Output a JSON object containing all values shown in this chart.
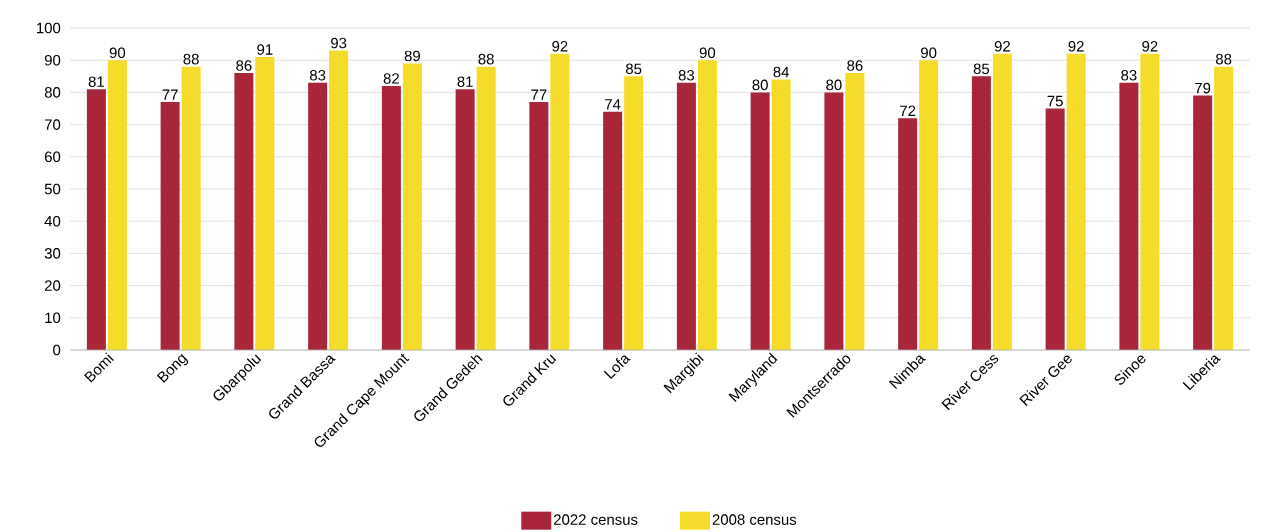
{
  "chart_data": {
    "type": "bar",
    "categories": [
      "Bomi",
      "Bong",
      "Gbarpolu",
      "Grand Bassa",
      "Grand Cape Mount",
      "Grand Gedeh",
      "Grand Kru",
      "Lofa",
      "Margibi",
      "Maryland",
      "Montserrado",
      "Nimba",
      "River Cess",
      "River Gee",
      "Sinoe",
      "Liberia"
    ],
    "series": [
      {
        "name": "2022 census",
        "color": "#a8253a",
        "values": [
          81,
          77,
          86,
          83,
          82,
          81,
          77,
          74,
          83,
          80,
          80,
          72,
          85,
          75,
          83,
          79
        ]
      },
      {
        "name": "2008 census",
        "color": "#f5dc2a",
        "values": [
          90,
          88,
          91,
          93,
          89,
          88,
          92,
          85,
          90,
          84,
          86,
          90,
          92,
          92,
          92,
          88
        ]
      }
    ],
    "ylim": [
      0,
      100
    ],
    "yticks": [
      0,
      10,
      20,
      30,
      40,
      50,
      60,
      70,
      80,
      90,
      100
    ],
    "grid": "y",
    "legend": "bottom",
    "data_labels": true
  }
}
